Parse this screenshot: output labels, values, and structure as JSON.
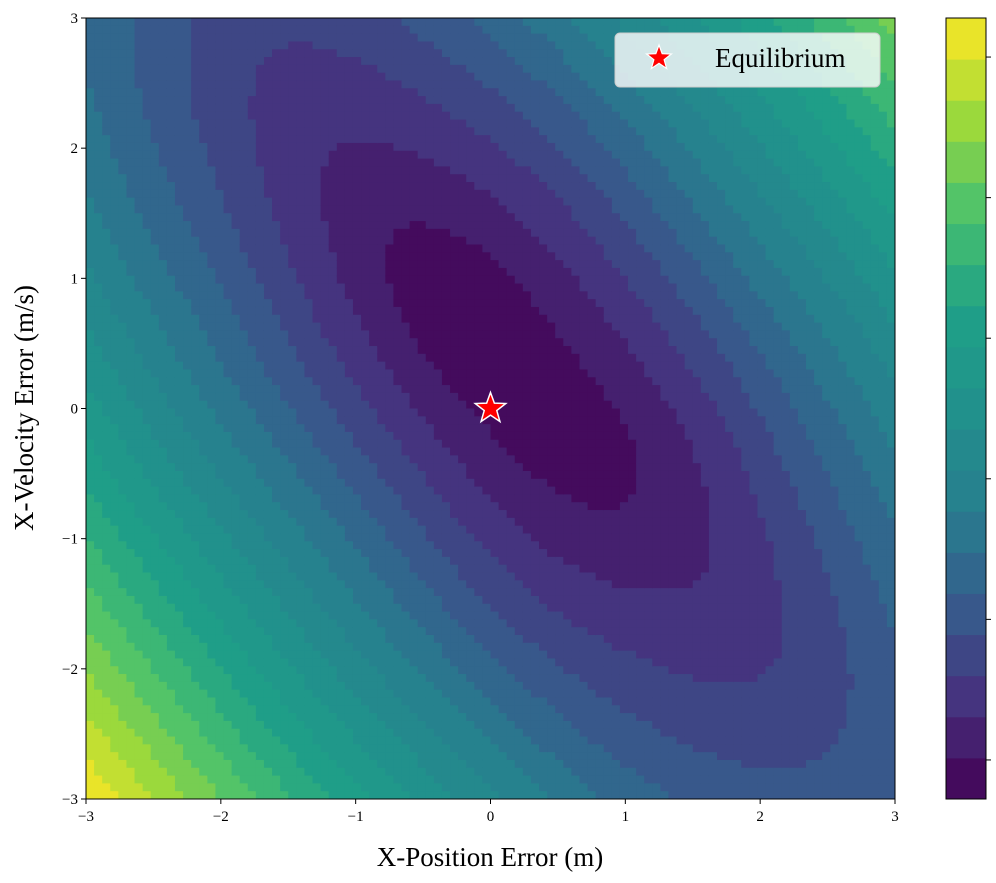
{
  "chart_data": {
    "type": "heatmap",
    "subtype": "filled-contour",
    "title": "",
    "xlabel": "X-Position Error (m)",
    "ylabel": "X-Velocity Error (m/s)",
    "xlim": [
      -3,
      3
    ],
    "ylim": [
      -3,
      3
    ],
    "x_ticks": [
      -3,
      -2,
      -1,
      0,
      1,
      2,
      3
    ],
    "y_ticks": [
      -3,
      -2,
      -1,
      0,
      1,
      2,
      3
    ],
    "x_tick_labels": [
      "−3",
      "−2",
      "−1",
      "0",
      "1",
      "2",
      "3"
    ],
    "y_tick_labels": [
      "−3",
      "−2",
      "−1",
      "0",
      "1",
      "2",
      "3"
    ],
    "grid": false,
    "colormap": "viridis",
    "levels": 19,
    "colorbar": {
      "tick_count": 6,
      "tick_labels_visible": false
    },
    "min_location": [
      0.2,
      0.3
    ],
    "legend": {
      "placement": "top-right",
      "entries": [
        {
          "label": "Equilibrium",
          "marker": "star",
          "color": "#ff0000"
        }
      ]
    },
    "markers": [
      {
        "name": "Equilibrium",
        "x": 0,
        "y": 0,
        "shape": "star",
        "color": "#ff0000"
      }
    ]
  }
}
